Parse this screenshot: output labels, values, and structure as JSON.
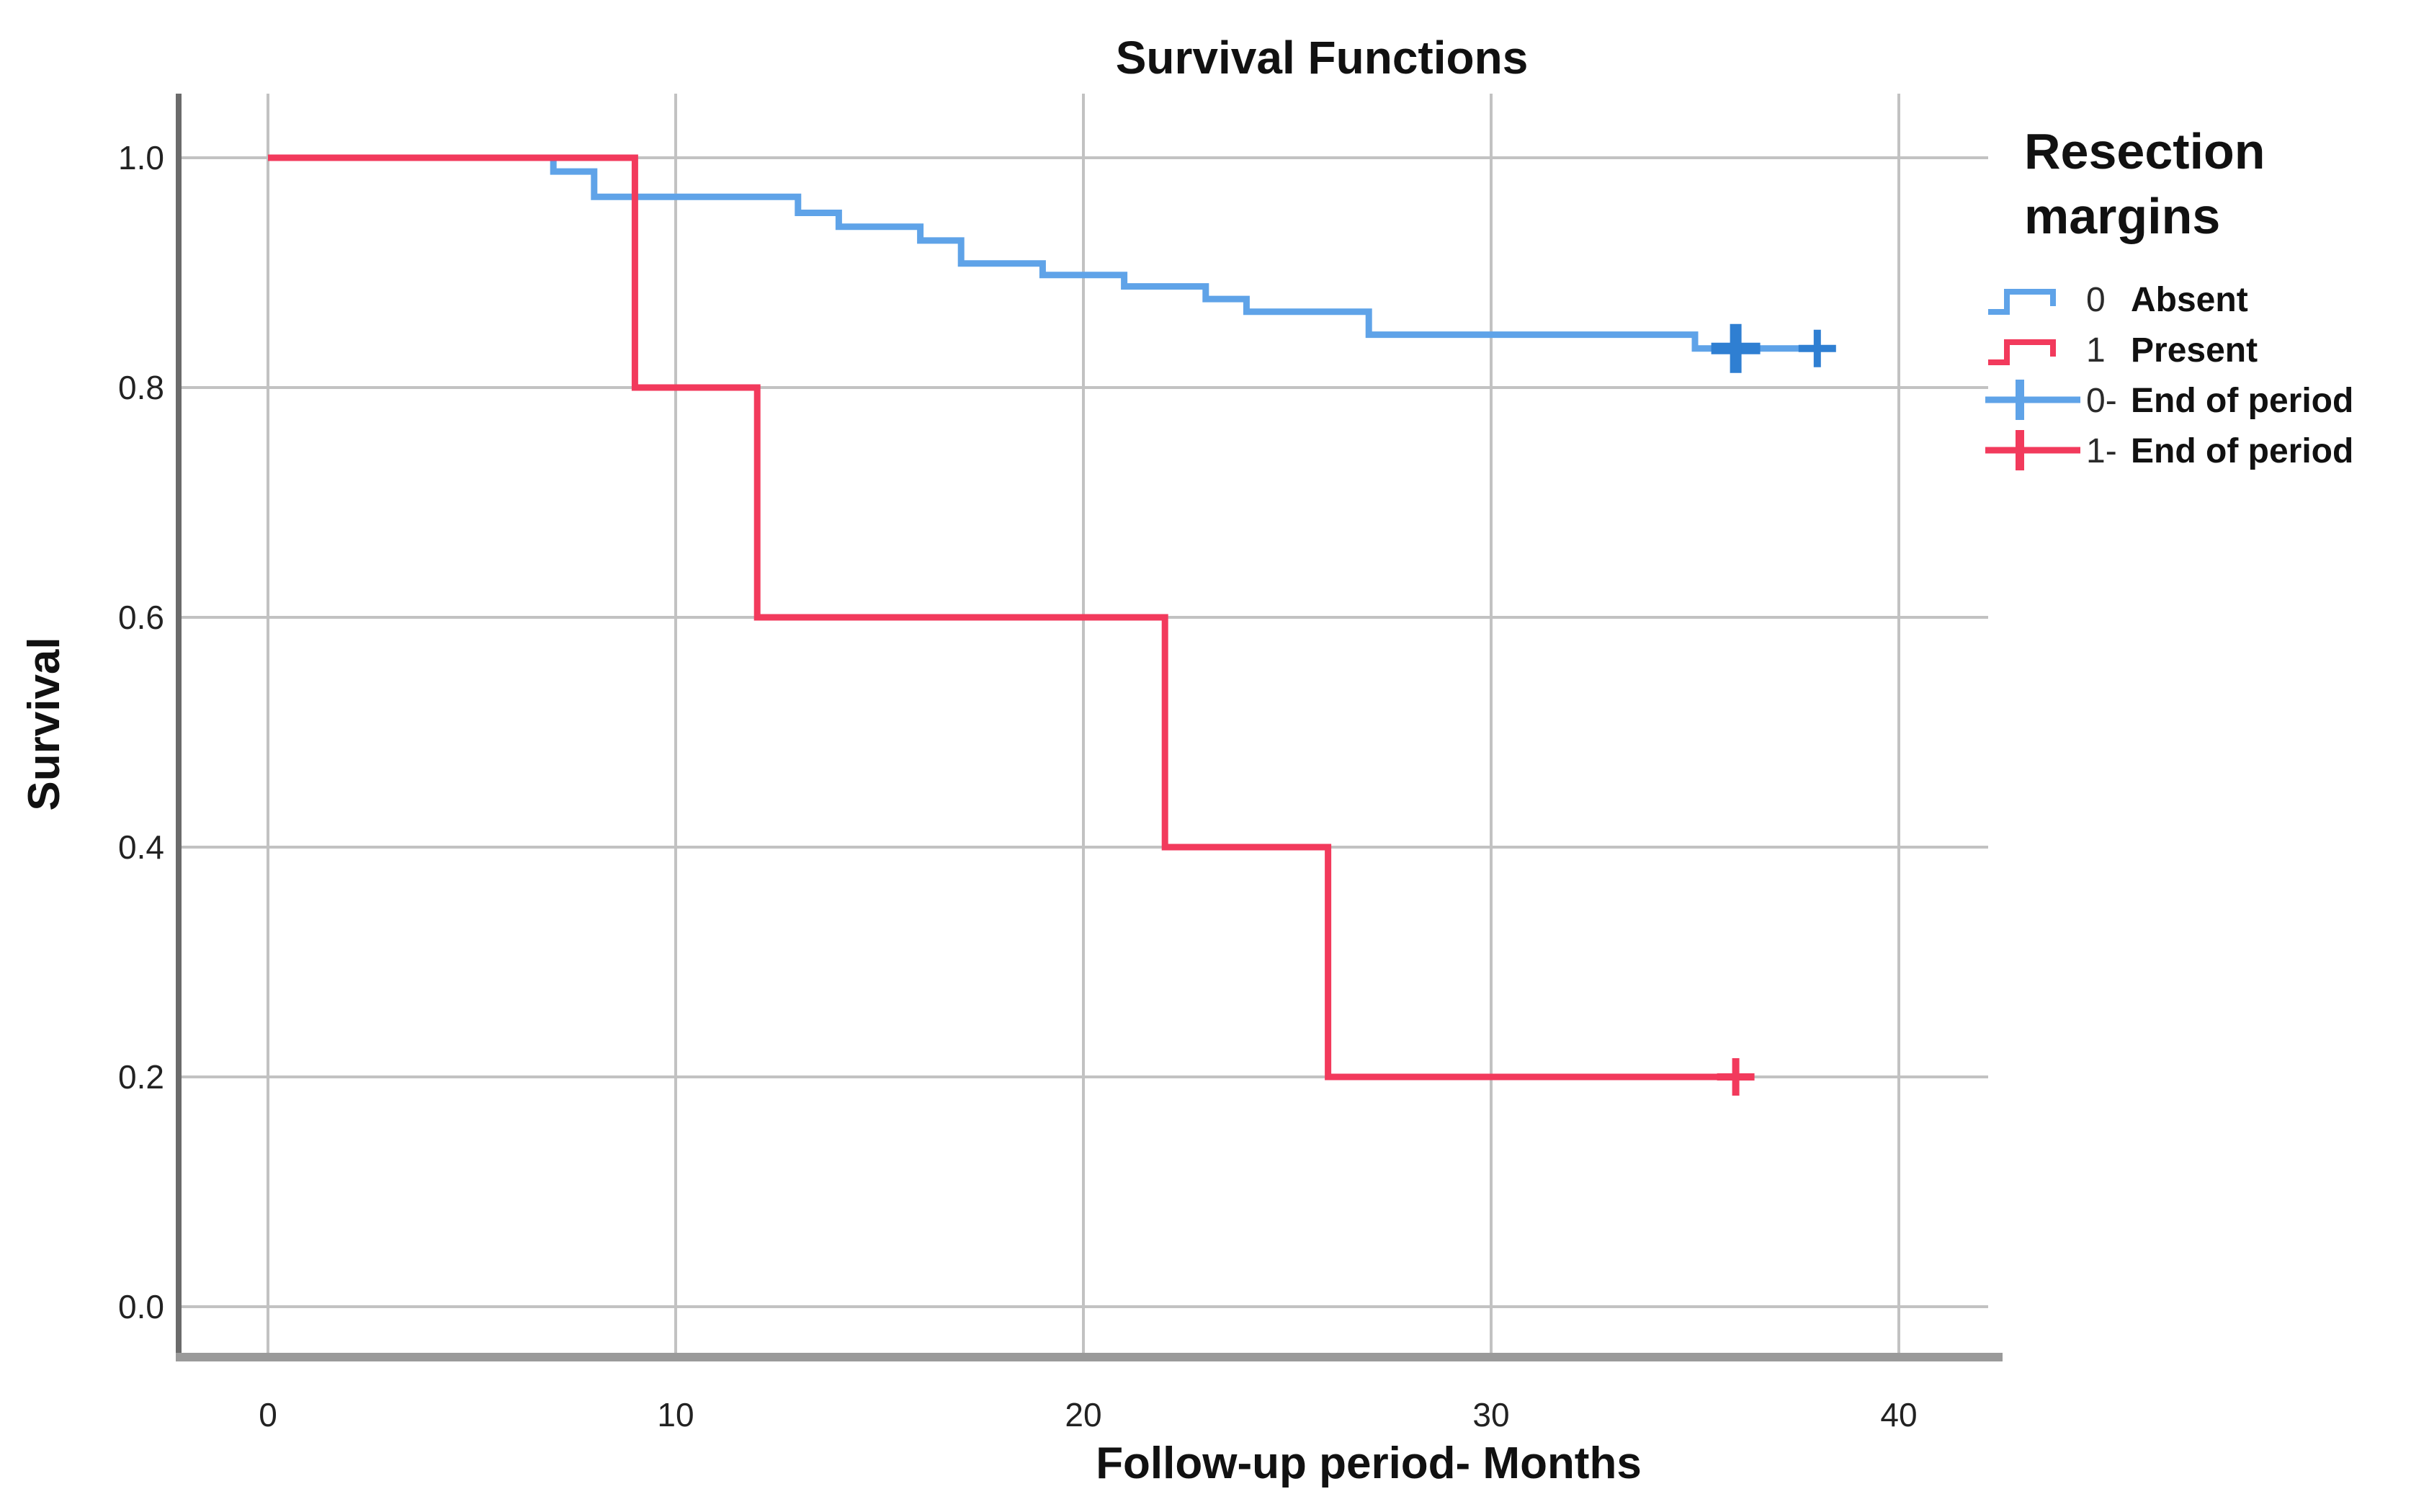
{
  "chart_data": {
    "type": "line",
    "subtype": "kaplan-meier-step",
    "title": "Survival Functions",
    "xlabel": "Follow-up period- Months",
    "ylabel": "Survival",
    "grid": true,
    "xlim": [
      -2,
      42
    ],
    "ylim": [
      -0.04,
      1.06
    ],
    "x_ticks": [
      {
        "label": "0",
        "value": 0
      },
      {
        "label": "10",
        "value": 10
      },
      {
        "label": "20",
        "value": 20
      },
      {
        "label": "30",
        "value": 30
      },
      {
        "label": "40",
        "value": 40
      }
    ],
    "y_ticks": [
      {
        "label": "1.0",
        "value": 1.0
      },
      {
        "label": "0.8",
        "value": 0.8
      },
      {
        "label": "0.6",
        "value": 0.6
      },
      {
        "label": "0.4",
        "value": 0.4
      },
      {
        "label": "0.2",
        "value": 0.2
      },
      {
        "label": "0.0",
        "value": 0.0
      }
    ],
    "colors": {
      "absent_blue": "#5FA3E8",
      "absent_censor_blue": "#2F7FD2",
      "present_red": "#F23A5C",
      "gridline_gray": "#c2c2c2",
      "axis_gray": "#8a8a8a",
      "text_black": "#1a1a1a"
    },
    "legend": {
      "position": "right",
      "title_lines": [
        "Resection",
        "margins"
      ],
      "items": [
        {
          "code": "0",
          "label": "Absent",
          "marker": "step",
          "color": "#5FA3E8"
        },
        {
          "code": "1",
          "label": "Present",
          "marker": "step",
          "color": "#F23A5C"
        },
        {
          "code": "0-",
          "label": "End of period",
          "marker": "censor",
          "color": "#5FA3E8"
        },
        {
          "code": "1-",
          "label": "End of period",
          "marker": "censor",
          "color": "#F23A5C"
        }
      ]
    },
    "series": [
      {
        "name": "Absent (0)",
        "color": "#5FA3E8",
        "censor_color": "#2F7FD2",
        "steps": [
          [
            0,
            1.0
          ],
          [
            7,
            0.988
          ],
          [
            8,
            0.966
          ],
          [
            13,
            0.952
          ],
          [
            14,
            0.94
          ],
          [
            16,
            0.928
          ],
          [
            17,
            0.908
          ],
          [
            19,
            0.898
          ],
          [
            21,
            0.888
          ],
          [
            23,
            0.877
          ],
          [
            24,
            0.866
          ],
          [
            27,
            0.846
          ],
          [
            35,
            0.834
          ]
        ],
        "end_x": 38,
        "censored": [
          {
            "x": 36,
            "y": 0.834,
            "bold": true
          },
          {
            "x": 38,
            "y": 0.834,
            "bold": false
          }
        ]
      },
      {
        "name": "Present (1)",
        "color": "#F23A5C",
        "censor_color": "#F23A5C",
        "steps": [
          [
            0,
            1.0
          ],
          [
            9,
            0.8
          ],
          [
            12,
            0.6
          ],
          [
            22,
            0.4
          ],
          [
            26,
            0.2
          ]
        ],
        "end_x": 36,
        "censored": [
          {
            "x": 36,
            "y": 0.2,
            "bold": false
          }
        ]
      }
    ]
  }
}
